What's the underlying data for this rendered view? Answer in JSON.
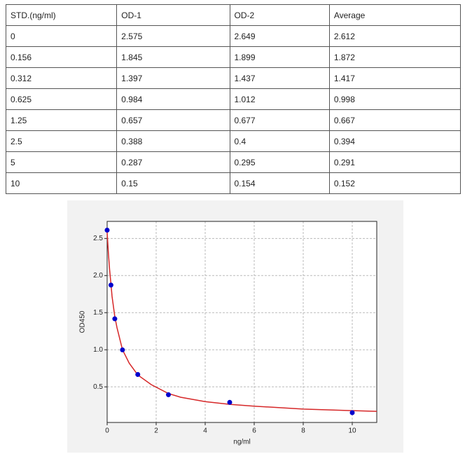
{
  "table": {
    "header": [
      "STD.(ng/ml)",
      "OD-1",
      "OD-2",
      "Average"
    ],
    "rows": [
      [
        "0",
        "2.575",
        "2.649",
        "2.612"
      ],
      [
        "0.156",
        "1.845",
        "1.899",
        "1.872"
      ],
      [
        "0.312",
        "1.397",
        "1.437",
        "1.417"
      ],
      [
        "0.625",
        "0.984",
        "1.012",
        "0.998"
      ],
      [
        "1.25",
        "0.657",
        "0.677",
        "0.667"
      ],
      [
        "2.5",
        "0.388",
        "0.4",
        "0.394"
      ],
      [
        "5",
        "0.287",
        "0.295",
        "0.291"
      ],
      [
        "10",
        "0.15",
        "0.154",
        "0.152"
      ]
    ]
  },
  "chart_data": {
    "type": "scatter",
    "x_label": "ng/ml",
    "y_label": "OD450",
    "x": [
      0,
      0.156,
      0.312,
      0.625,
      1.25,
      2.5,
      5,
      10
    ],
    "values": [
      2.612,
      1.872,
      1.417,
      0.998,
      0.667,
      0.394,
      0.291,
      0.152
    ],
    "color": "#0000cc",
    "fit": {
      "color": "#d62728",
      "x": [
        0,
        0.05,
        0.1,
        0.156,
        0.2,
        0.312,
        0.4,
        0.625,
        0.9,
        1.25,
        1.8,
        2.5,
        3,
        4,
        5,
        6,
        8,
        10,
        11
      ],
      "values": [
        2.58,
        2.3,
        2.08,
        1.88,
        1.72,
        1.45,
        1.3,
        1.0,
        0.82,
        0.66,
        0.53,
        0.41,
        0.36,
        0.3,
        0.265,
        0.24,
        0.2,
        0.18,
        0.17
      ]
    },
    "xlim": [
      0,
      11
    ],
    "ylim": [
      0.02,
      2.73
    ],
    "xticks": [
      0,
      2,
      4,
      6,
      8,
      10
    ],
    "yticks": [
      0.5,
      {
        "value": 1,
        "label": "1.0"
      },
      1.5,
      {
        "value": 2,
        "label": "2.0"
      },
      2.5
    ],
    "grid": true
  }
}
